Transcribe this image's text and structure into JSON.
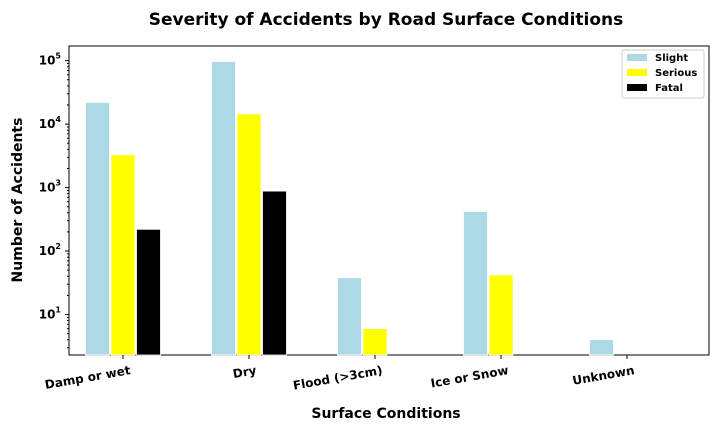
{
  "chart_data": {
    "type": "bar",
    "title": "Severity of Accidents by Road Surface Conditions",
    "xlabel": "Surface Conditions",
    "ylabel": "Number of Accidents",
    "yscale": "log",
    "ylim": [
      2.3,
      170000
    ],
    "yticks": [
      {
        "value": 10,
        "base": "10",
        "exp": "1"
      },
      {
        "value": 100,
        "base": "10",
        "exp": "2"
      },
      {
        "value": 1000,
        "base": "10",
        "exp": "3"
      },
      {
        "value": 10000,
        "base": "10",
        "exp": "4"
      },
      {
        "value": 100000,
        "base": "10",
        "exp": "5"
      }
    ],
    "categories": [
      "Damp or wet",
      "Dry",
      "Flood (>3cm)",
      "Ice or Snow",
      "Unknown"
    ],
    "series": [
      {
        "name": "Slight",
        "color": "#add8e6",
        "values": [
          22000,
          97000,
          38,
          420,
          4
        ]
      },
      {
        "name": "Serious",
        "color": "#ffff00",
        "values": [
          3300,
          14500,
          6,
          42,
          null
        ]
      },
      {
        "name": "Fatal",
        "color": "#000000",
        "values": [
          220,
          880,
          null,
          null,
          null
        ]
      }
    ],
    "legend": "top-right",
    "grid": false
  }
}
